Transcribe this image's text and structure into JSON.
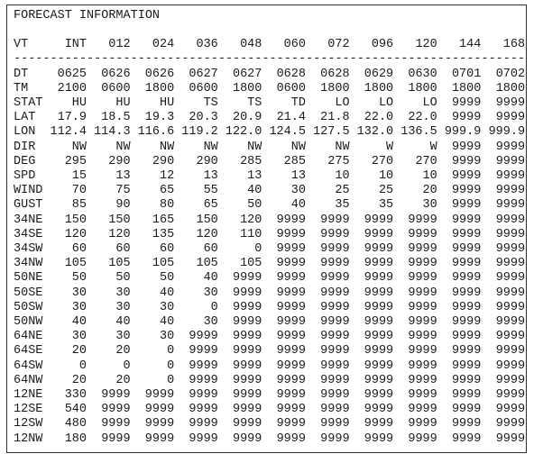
{
  "page": {
    "title": "FORECAST INFORMATION",
    "background_color": "#ffffff",
    "border_color": "#2f2f2f",
    "text_color": "#1b1b1b"
  },
  "table": {
    "header": [
      "VT",
      "INT",
      "012",
      "024",
      "036",
      "048",
      "060",
      "072",
      "096",
      "120",
      "144",
      "168"
    ],
    "separator": "----------------------------------------------------------------------",
    "rows": [
      {
        "label": "DT",
        "values": [
          "0625",
          "0626",
          "0626",
          "0627",
          "0627",
          "0628",
          "0628",
          "0629",
          "0630",
          "0701",
          "0702"
        ]
      },
      {
        "label": "TM",
        "values": [
          "2100",
          "0600",
          "1800",
          "0600",
          "1800",
          "0600",
          "1800",
          "1800",
          "1800",
          "1800",
          "1800"
        ]
      },
      {
        "label": "STAT",
        "values": [
          "HU",
          "HU",
          "HU",
          "TS",
          "TS",
          "TD",
          "LO",
          "LO",
          "LO",
          "9999",
          "9999"
        ]
      },
      {
        "label": "LAT",
        "values": [
          "17.9",
          "18.5",
          "19.3",
          "20.3",
          "20.9",
          "21.4",
          "21.8",
          "22.0",
          "22.0",
          "9999",
          "9999"
        ]
      },
      {
        "label": "LON",
        "values": [
          "112.4",
          "114.3",
          "116.6",
          "119.2",
          "122.0",
          "124.5",
          "127.5",
          "132.0",
          "136.5",
          "999.9",
          "999.9"
        ]
      },
      {
        "label": "DIR",
        "values": [
          "NW",
          "NW",
          "NW",
          "NW",
          "NW",
          "NW",
          "NW",
          "W",
          "W",
          "9999",
          "9999"
        ]
      },
      {
        "label": "DEG",
        "values": [
          "295",
          "290",
          "290",
          "290",
          "285",
          "285",
          "275",
          "270",
          "270",
          "9999",
          "9999"
        ]
      },
      {
        "label": "SPD",
        "values": [
          "15",
          "13",
          "12",
          "13",
          "13",
          "13",
          "10",
          "10",
          "10",
          "9999",
          "9999"
        ]
      },
      {
        "label": "WIND",
        "values": [
          "70",
          "75",
          "65",
          "55",
          "40",
          "30",
          "25",
          "25",
          "20",
          "9999",
          "9999"
        ]
      },
      {
        "label": "GUST",
        "values": [
          "85",
          "90",
          "80",
          "65",
          "50",
          "40",
          "35",
          "35",
          "30",
          "9999",
          "9999"
        ]
      },
      {
        "label": "34NE",
        "values": [
          "150",
          "150",
          "165",
          "150",
          "120",
          "9999",
          "9999",
          "9999",
          "9999",
          "9999",
          "9999"
        ]
      },
      {
        "label": "34SE",
        "values": [
          "120",
          "120",
          "135",
          "120",
          "110",
          "9999",
          "9999",
          "9999",
          "9999",
          "9999",
          "9999"
        ]
      },
      {
        "label": "34SW",
        "values": [
          "60",
          "60",
          "60",
          "60",
          "0",
          "9999",
          "9999",
          "9999",
          "9999",
          "9999",
          "9999"
        ]
      },
      {
        "label": "34NW",
        "values": [
          "105",
          "105",
          "105",
          "105",
          "105",
          "9999",
          "9999",
          "9999",
          "9999",
          "9999",
          "9999"
        ]
      },
      {
        "label": "50NE",
        "values": [
          "50",
          "50",
          "50",
          "40",
          "9999",
          "9999",
          "9999",
          "9999",
          "9999",
          "9999",
          "9999"
        ]
      },
      {
        "label": "50SE",
        "values": [
          "30",
          "30",
          "40",
          "30",
          "9999",
          "9999",
          "9999",
          "9999",
          "9999",
          "9999",
          "9999"
        ]
      },
      {
        "label": "50SW",
        "values": [
          "30",
          "30",
          "30",
          "0",
          "9999",
          "9999",
          "9999",
          "9999",
          "9999",
          "9999",
          "9999"
        ]
      },
      {
        "label": "50NW",
        "values": [
          "40",
          "40",
          "40",
          "30",
          "9999",
          "9999",
          "9999",
          "9999",
          "9999",
          "9999",
          "9999"
        ]
      },
      {
        "label": "64NE",
        "values": [
          "30",
          "30",
          "30",
          "9999",
          "9999",
          "9999",
          "9999",
          "9999",
          "9999",
          "9999",
          "9999"
        ]
      },
      {
        "label": "64SE",
        "values": [
          "20",
          "20",
          "0",
          "9999",
          "9999",
          "9999",
          "9999",
          "9999",
          "9999",
          "9999",
          "9999"
        ]
      },
      {
        "label": "64SW",
        "values": [
          "0",
          "0",
          "0",
          "9999",
          "9999",
          "9999",
          "9999",
          "9999",
          "9999",
          "9999",
          "9999"
        ]
      },
      {
        "label": "64NW",
        "values": [
          "20",
          "20",
          "0",
          "9999",
          "9999",
          "9999",
          "9999",
          "9999",
          "9999",
          "9999",
          "9999"
        ]
      },
      {
        "label": "12NE",
        "values": [
          "330",
          "9999",
          "9999",
          "9999",
          "9999",
          "9999",
          "9999",
          "9999",
          "9999",
          "9999",
          "9999"
        ]
      },
      {
        "label": "12SE",
        "values": [
          "540",
          "9999",
          "9999",
          "9999",
          "9999",
          "9999",
          "9999",
          "9999",
          "9999",
          "9999",
          "9999"
        ]
      },
      {
        "label": "12SW",
        "values": [
          "480",
          "9999",
          "9999",
          "9999",
          "9999",
          "9999",
          "9999",
          "9999",
          "9999",
          "9999",
          "9999"
        ]
      },
      {
        "label": "12NW",
        "values": [
          "180",
          "9999",
          "9999",
          "9999",
          "9999",
          "9999",
          "9999",
          "9999",
          "9999",
          "9999",
          "9999"
        ]
      }
    ]
  }
}
